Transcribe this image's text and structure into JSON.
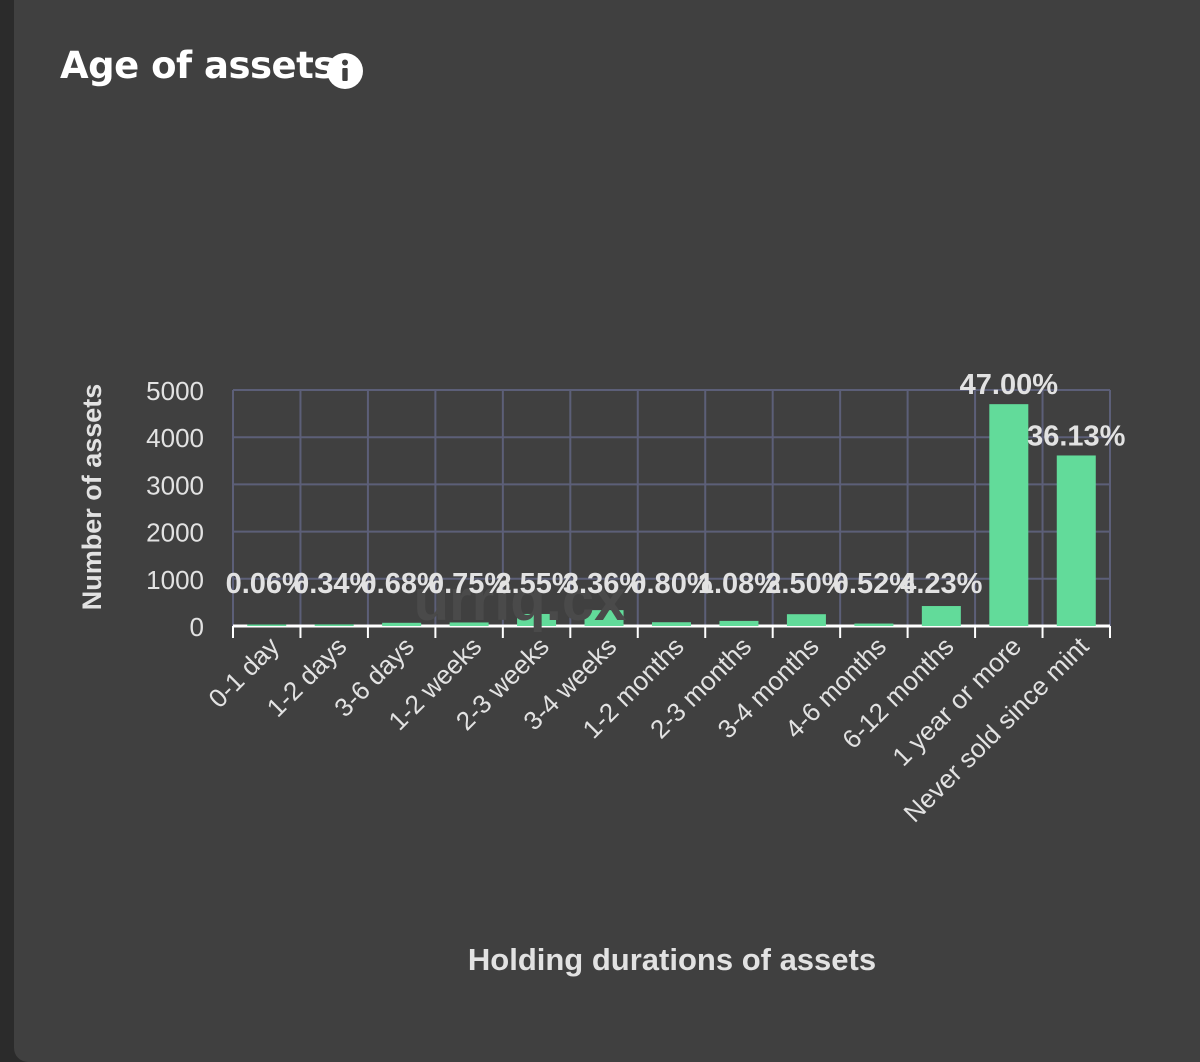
{
  "card": {
    "title": "Age of assets",
    "info_icon": "info-icon"
  },
  "watermark": "urriq.cx",
  "colors": {
    "background": "#404040",
    "bar": "#62db9a",
    "grid": "#5c5f78",
    "text": "#e2e2e2"
  },
  "chart_data": {
    "type": "bar",
    "title": "",
    "xlabel": "Holding durations of assets",
    "ylabel": "Number of assets",
    "ylim": [
      0,
      5000
    ],
    "yticks": [
      0,
      1000,
      2000,
      3000,
      4000,
      5000
    ],
    "grid": true,
    "categories": [
      "0-1 day",
      "1-2 days",
      "3-6 days",
      "1-2 weeks",
      "2-3 weeks",
      "3-4 weeks",
      "1-2 months",
      "2-3 months",
      "3-4 months",
      "4-6 months",
      "6-12 months",
      "1 year or more",
      "Never sold since mint"
    ],
    "values": [
      6,
      34,
      68,
      75,
      255,
      336,
      80,
      108,
      250,
      52,
      423,
      4700,
      3613
    ],
    "data_labels": [
      "0.06%",
      "0.34%",
      "0.68%",
      "0.75%",
      "2.55%",
      "3.36%",
      "0.80%",
      "1.08%",
      "2.50%",
      "0.52%",
      "4.23%",
      "47.00%",
      "36.13%"
    ]
  }
}
